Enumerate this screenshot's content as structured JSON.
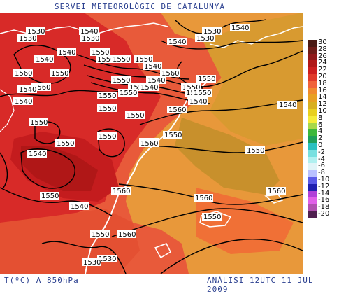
{
  "header": {
    "title": "SERVEI METEOROLÒGIC DE CATALUNYA"
  },
  "footer": {
    "variable": "T(ºC) A 850hPa",
    "analysis": "ANÀLISI 12UTC 11 JUL 2009"
  },
  "legend": {
    "items": [
      {
        "label": "30",
        "color": "#4a1a14"
      },
      {
        "label": "28",
        "color": "#6e1d18"
      },
      {
        "label": "26",
        "color": "#8f1a1a"
      },
      {
        "label": "24",
        "color": "#b01717"
      },
      {
        "label": "22",
        "color": "#cc1e1e"
      },
      {
        "label": "20",
        "color": "#e03a2a"
      },
      {
        "label": "18",
        "color": "#f0623a"
      },
      {
        "label": "16",
        "color": "#f08a2e"
      },
      {
        "label": "14",
        "color": "#e8a022"
      },
      {
        "label": "12",
        "color": "#d8b020"
      },
      {
        "label": "10",
        "color": "#e8d020"
      },
      {
        "label": "8",
        "color": "#f4ec3a"
      },
      {
        "label": "6",
        "color": "#a8d84a"
      },
      {
        "label": "4",
        "color": "#3cb83c"
      },
      {
        "label": "2",
        "color": "#1ea05a"
      },
      {
        "label": "0",
        "color": "#2ac0c0"
      },
      {
        "label": "-2",
        "color": "#78e0e0"
      },
      {
        "label": "-4",
        "color": "#b0f0f0"
      },
      {
        "label": "-6",
        "color": "#e0f4f8"
      },
      {
        "label": "-8",
        "color": "#b8c0ff"
      },
      {
        "label": "-10",
        "color": "#5a5ae8"
      },
      {
        "label": "-12",
        "color": "#2020b0"
      },
      {
        "label": "-14",
        "color": "#b040d8"
      },
      {
        "label": "-16",
        "color": "#e060e8"
      },
      {
        "label": "-18",
        "color": "#b050b0"
      },
      {
        "label": "-20",
        "color": "#502050"
      }
    ]
  },
  "contour_labels": [
    "1530",
    "1540",
    "1530",
    "1540",
    "1530",
    "1530",
    "1540",
    "1530",
    "1540",
    "1550",
    "1550",
    "1540",
    "1550",
    "1550",
    "1540",
    "1550",
    "1560",
    "1560",
    "1540",
    "1550",
    "1550",
    "1550",
    "1550",
    "1540",
    "1550",
    "1560",
    "1530",
    "1550",
    "1540",
    "1540",
    "1550",
    "1540",
    "1550",
    "1560",
    "1550",
    "1550",
    "1540",
    "1540",
    "1550",
    "1550",
    "1550",
    "1550",
    "1560",
    "1540",
    "1560",
    "1560",
    "1560",
    "1550",
    "1560",
    "1550",
    "1540",
    "1550",
    "1530",
    "1530"
  ]
}
